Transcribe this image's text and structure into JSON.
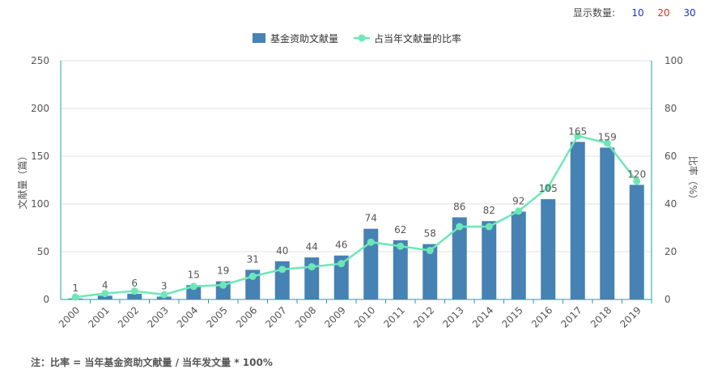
{
  "display_count": {
    "label": "显示数量:",
    "options": [
      {
        "label": "10",
        "color": "#1a33cc"
      },
      {
        "label": "20",
        "color": "#d93025"
      },
      {
        "label": "30",
        "color": "#1a33cc"
      }
    ]
  },
  "note": "注：比率 = 当年基金资助文献量 / 当年发文量 * 100%",
  "chart_data": {
    "type": "bar+line",
    "categories": [
      "2000",
      "2001",
      "2002",
      "2003",
      "2004",
      "2005",
      "2006",
      "2007",
      "2008",
      "2009",
      "2010",
      "2011",
      "2012",
      "2013",
      "2014",
      "2015",
      "2016",
      "2017",
      "2018",
      "2019"
    ],
    "series": [
      {
        "name": "基金资助文献量",
        "type": "bar",
        "axis": "left",
        "color": "#4682b4",
        "values": [
          1,
          4,
          6,
          3,
          15,
          19,
          31,
          40,
          44,
          46,
          74,
          62,
          58,
          86,
          82,
          92,
          105,
          165,
          159,
          120
        ]
      },
      {
        "name": "占当年文献量的比率",
        "type": "line",
        "axis": "right",
        "color": "#6ee7b7",
        "values": [
          1,
          2.5,
          3.5,
          2,
          5.5,
          6,
          9.7,
          12.6,
          13.7,
          15,
          24,
          22.3,
          20.5,
          30.5,
          30.5,
          37,
          47,
          68.5,
          65.5,
          49.5
        ]
      }
    ],
    "ylabel": "文献量（篇）",
    "ylabel_right": "比率（%）",
    "ylim": [
      0,
      250
    ],
    "yticks": [
      0,
      50,
      100,
      150,
      200,
      250
    ],
    "ylim_right": [
      0,
      100
    ],
    "yticks_right": [
      0,
      20,
      40,
      60,
      80,
      100
    ],
    "grid": true,
    "legend_position": "top-center"
  }
}
